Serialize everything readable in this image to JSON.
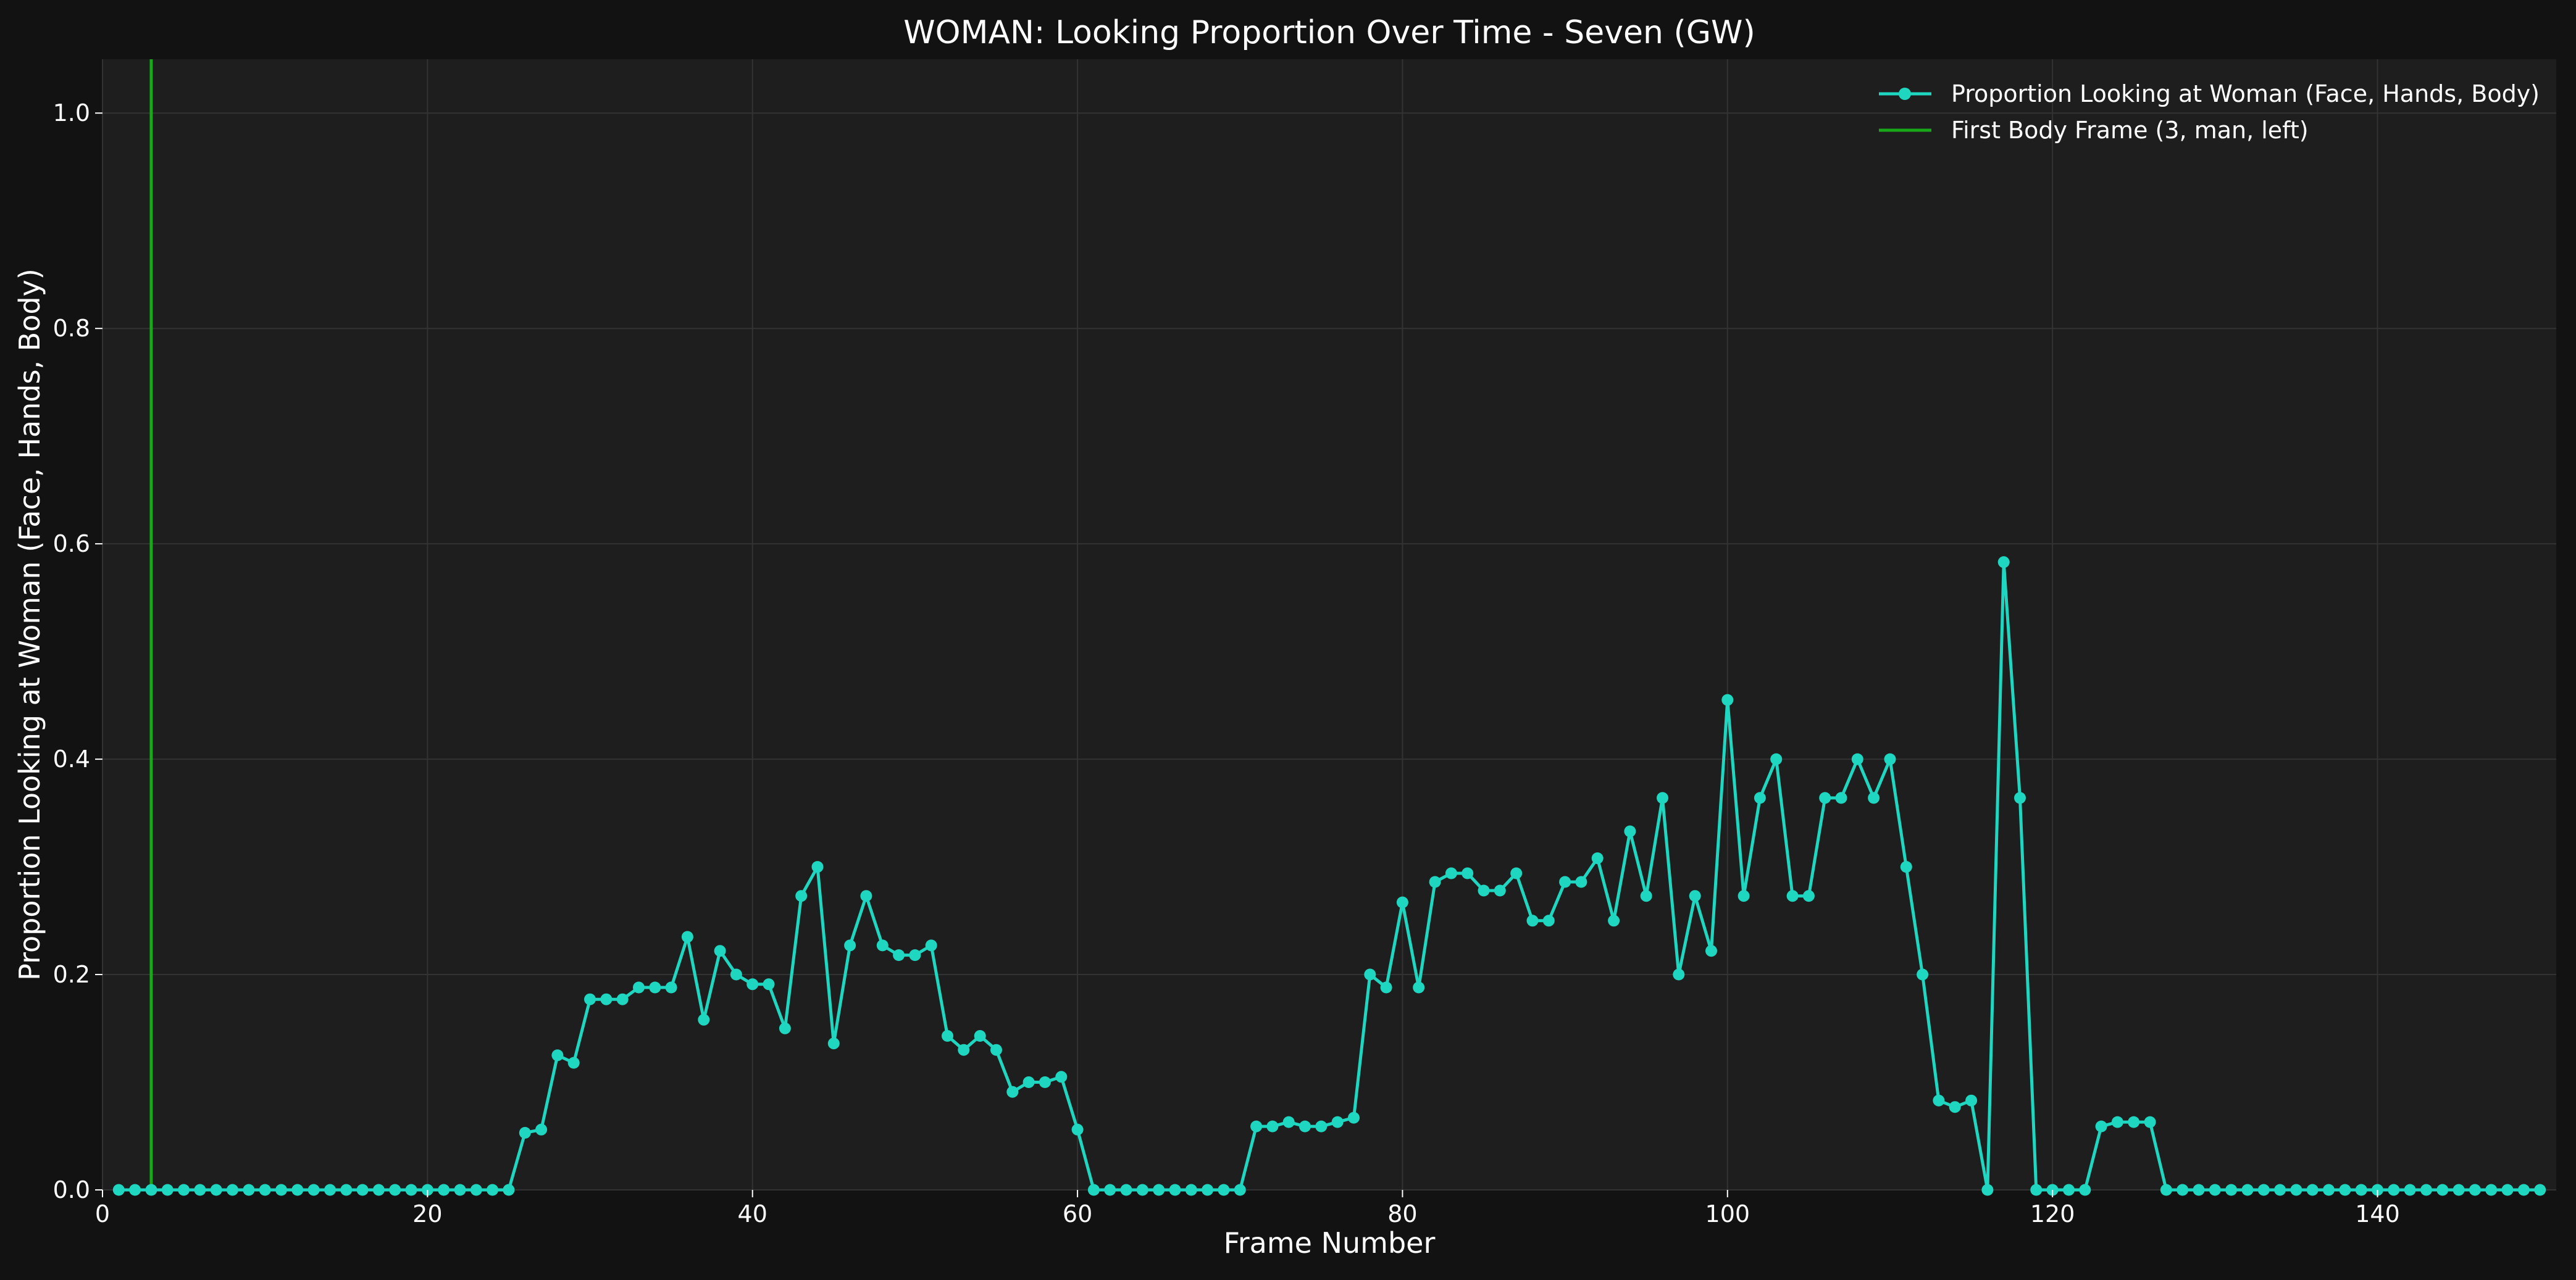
{
  "colors": {
    "figure_background": "#121212",
    "plot_background": "#1e1e1e",
    "grid": "#333333",
    "series": "#1fd6c0",
    "marker_line": "#18a81a",
    "text": "#ffffff"
  },
  "chart_data": {
    "type": "line",
    "title": "WOMAN: Looking Proportion Over Time - Seven (GW)",
    "xlabel": "Frame Number",
    "ylabel": "Proportion Looking at Woman (Face, Hands, Body)",
    "xlim": [
      0,
      151
    ],
    "ylim": [
      0,
      1.05
    ],
    "xticks": [
      0,
      20,
      40,
      60,
      80,
      100,
      120,
      140
    ],
    "yticks": [
      0.0,
      0.2,
      0.4,
      0.6,
      0.8,
      1.0
    ],
    "xtick_labels": [
      "0",
      "20",
      "40",
      "60",
      "80",
      "100",
      "120",
      "140"
    ],
    "ytick_labels": [
      "0.0",
      "0.2",
      "0.4",
      "0.6",
      "0.8",
      "1.0"
    ],
    "grid": true,
    "legend_position": "top-right",
    "series": [
      {
        "name": "Proportion Looking at Woman (Face, Hands, Body)",
        "x_start": 1,
        "x_end": 150,
        "values": [
          0,
          0,
          0,
          0,
          0,
          0,
          0,
          0,
          0,
          0,
          0,
          0,
          0,
          0,
          0,
          0,
          0,
          0,
          0,
          0,
          0,
          0,
          0,
          0,
          0,
          0.053,
          0.056,
          0.125,
          0.118,
          0.177,
          0.177,
          0.177,
          0.188,
          0.188,
          0.188,
          0.235,
          0.158,
          0.222,
          0.2,
          0.191,
          0.191,
          0.15,
          0.273,
          0.3,
          0.136,
          0.227,
          0.273,
          0.227,
          0.218,
          0.218,
          0.227,
          0.143,
          0.13,
          0.143,
          0.13,
          0.091,
          0.1,
          0.1,
          0.105,
          0.056,
          0,
          0,
          0,
          0,
          0,
          0,
          0,
          0,
          0,
          0,
          0.059,
          0.059,
          0.063,
          0.059,
          0.059,
          0.063,
          0.067,
          0.2,
          0.188,
          0.267,
          0.188,
          0.286,
          0.294,
          0.294,
          0.278,
          0.278,
          0.294,
          0.25,
          0.25,
          0.286,
          0.286,
          0.308,
          0.25,
          0.333,
          0.273,
          0.364,
          0.2,
          0.273,
          0.222,
          0.455,
          0.273,
          0.364,
          0.4,
          0.273,
          0.273,
          0.364,
          0.364,
          0.4,
          0.364,
          0.4,
          0.3,
          0.2,
          0.083,
          0.077,
          0.083,
          0,
          0.583,
          0.364,
          0,
          0,
          0,
          0,
          0.059,
          0.063,
          0.063,
          0.063,
          0,
          0,
          0,
          0,
          0,
          0,
          0,
          0,
          0,
          0,
          0,
          0,
          0,
          0,
          0,
          0,
          0,
          0,
          0,
          0,
          0,
          0,
          0,
          0
        ]
      }
    ],
    "vlines": [
      {
        "name": "First Body Frame (3, man, left)",
        "x": 3
      }
    ]
  }
}
